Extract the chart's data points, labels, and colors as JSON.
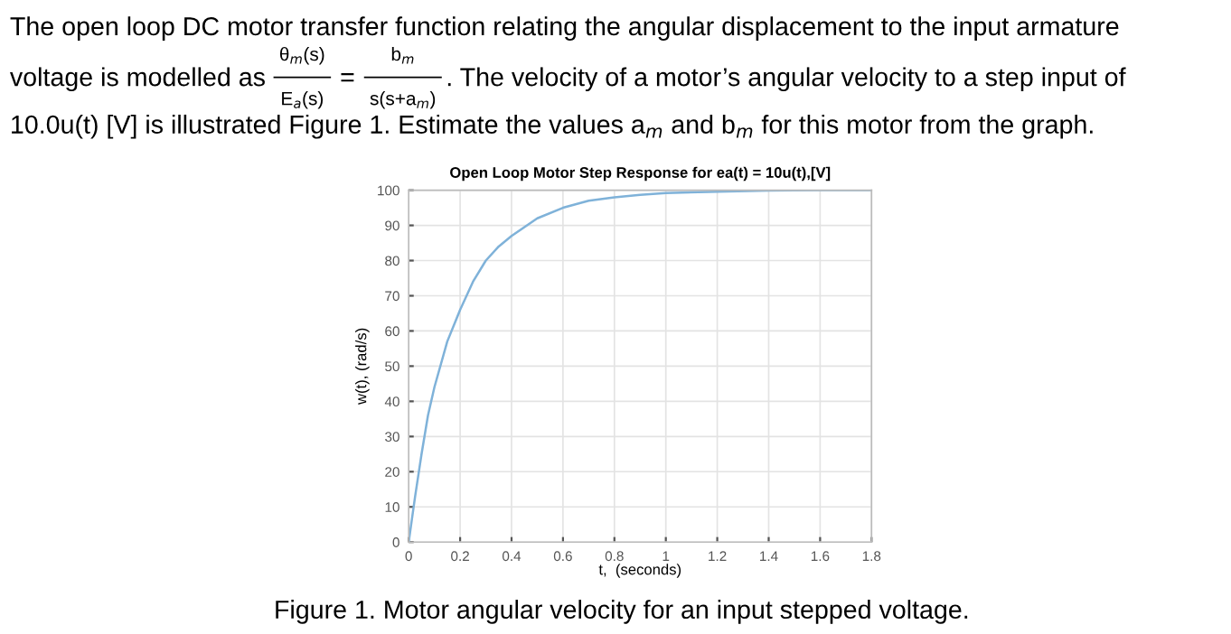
{
  "chart_data": {
    "type": "line",
    "title": "Open Loop Motor Step Response for ea(t) = 10u(t),[V]",
    "xlabel": "t,  (seconds)",
    "ylabel": "w(t), (rad/s)",
    "annotations": [
      "The open loop DC motor transfer function relating the angular displacement to the input armature",
      "voltage is modelled as",
      "θ$_{m}$(s)",
      "E$_{a}$(s)",
      "=",
      "b$_{m}$",
      "s(s+a$_{m}$)",
      ". The velocity of a motor’s angular velocity to a step input of",
      "10.0u(t) [V] is illustrated Figure 1. Estimate the values a$_{m}$ and b$_{m}$ for this motor from the graph.",
      "Figure 1. Motor angular velocity for an input stepped voltage."
    ],
    "series": [
      {
        "color": "#7fb2d9",
        "x": [
          0,
          0.025,
          0.05,
          0.075,
          0.1,
          0.15,
          0.2,
          0.25,
          0.3,
          0.35,
          0.4,
          0.5,
          0.6,
          0.7,
          0.8,
          0.9,
          1.0,
          1.2,
          1.4,
          1.6,
          1.8
        ],
        "values": [
          0,
          13,
          25,
          36,
          44,
          57,
          66,
          74,
          80,
          84,
          87,
          92,
          95,
          97,
          98,
          98.7,
          99.2,
          99.6,
          99.9,
          100,
          100
        ]
      }
    ],
    "xlim": [
      0,
      1.8
    ],
    "ylim": [
      0,
      100
    ],
    "xticks": [
      0,
      0.2,
      0.4,
      0.6,
      0.8,
      1,
      1.2,
      1.4,
      1.6,
      1.8
    ],
    "yticks": [
      0,
      10,
      20,
      30,
      40,
      50,
      60,
      70,
      80,
      90,
      100
    ],
    "grid": true,
    "marker": "none",
    "line_style": "solid"
  }
}
